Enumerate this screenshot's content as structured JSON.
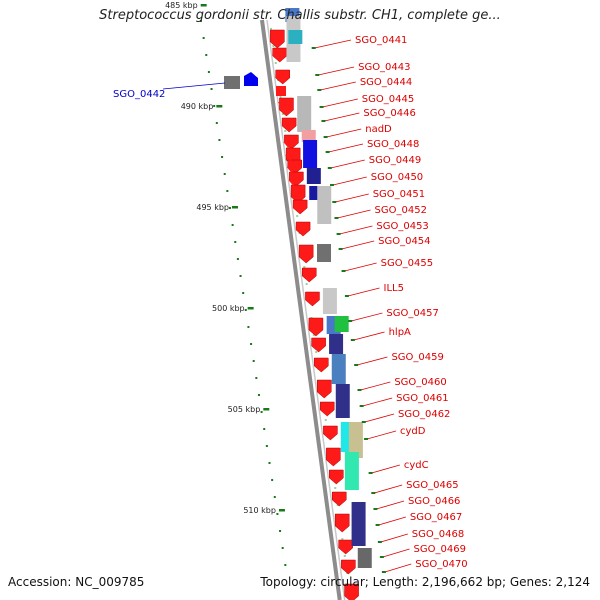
{
  "title": "Streptococcus gordonii str. Challis substr. CH1, complete ge...",
  "footer": {
    "accession": "Accession: NC_009785",
    "topology": "Topology: circular; Length: 2,196,662 bp; Genes: 2,124"
  },
  "colors": {
    "forward_gene": "#ff1a1a",
    "label": "#dd0000",
    "highlight_label": "#0000cc",
    "backbone": "#8c8c8c",
    "tick": "#1a7a1a"
  },
  "coordinates": [
    "485 kbp",
    "490 kbp",
    "495 kbp",
    "500 kbp",
    "505 kbp",
    "510 kbp"
  ],
  "left_label": "SGO_0442",
  "gene_labels": [
    "SGO_0441",
    "SGO_0443",
    "SGO_0444",
    "SGO_0445",
    "SGO_0446",
    "nadD",
    "SGO_0448",
    "SGO_0449",
    "SGO_0450",
    "SGO_0451",
    "SGO_0452",
    "SGO_0453",
    "SGO_0454",
    "SGO_0455",
    "ILL5",
    "SGO_0457",
    "hlpA",
    "SGO_0459",
    "SGO_0460",
    "SGO_0461",
    "SGO_0462",
    "cydD",
    "cydC",
    "SGO_0465",
    "SGO_0466",
    "SGO_0467",
    "SGO_0468",
    "SGO_0469",
    "SGO_0470"
  ]
}
